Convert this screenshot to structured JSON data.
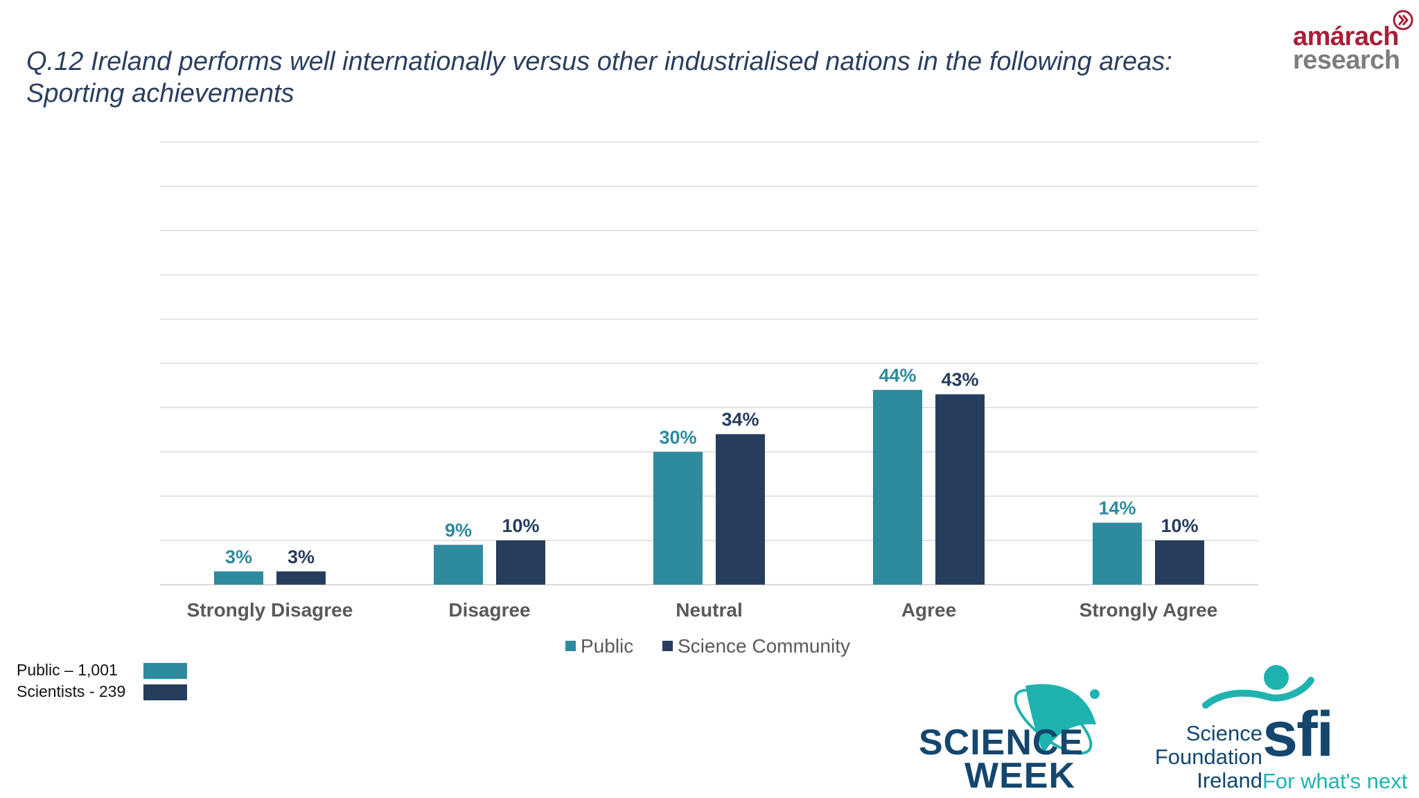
{
  "title": {
    "line1": "Q.12 Ireland performs well internationally versus other industrialised nations in the following areas:",
    "line2": "Sporting achievements"
  },
  "colors": {
    "public": "#2e8a9d",
    "science": "#263d5e",
    "gridline": "#d9d9d9",
    "axis_label": "#595959",
    "title": "#2a3f5e"
  },
  "chart_data": {
    "type": "bar",
    "categories": [
      "Strongly Disagree",
      "Disagree",
      "Neutral",
      "Agree",
      "Strongly Agree"
    ],
    "series": [
      {
        "name": "Public",
        "values": [
          3,
          9,
          30,
          44,
          14
        ],
        "labels": [
          "3%",
          "9%",
          "30%",
          "44%",
          "14%"
        ]
      },
      {
        "name": "Science Community",
        "values": [
          3,
          10,
          34,
          43,
          10
        ],
        "labels": [
          "3%",
          "10%",
          "34%",
          "43%",
          "10%"
        ]
      }
    ],
    "ylim": [
      0,
      100
    ],
    "grid": true,
    "legend": "bottom-center"
  },
  "samples": [
    {
      "label": "Public – 1,001"
    },
    {
      "label": "Scientists - 239"
    }
  ],
  "logos": {
    "amarach_line1": "amárach",
    "amarach_line2": "research",
    "science_week_line1": "SCIENCE",
    "science_week_line2": "WEEK",
    "sfi_words": [
      "Science",
      "Foundation",
      "Ireland"
    ],
    "sfi_mark": "sfi",
    "sfi_tagline": "For what's next"
  }
}
